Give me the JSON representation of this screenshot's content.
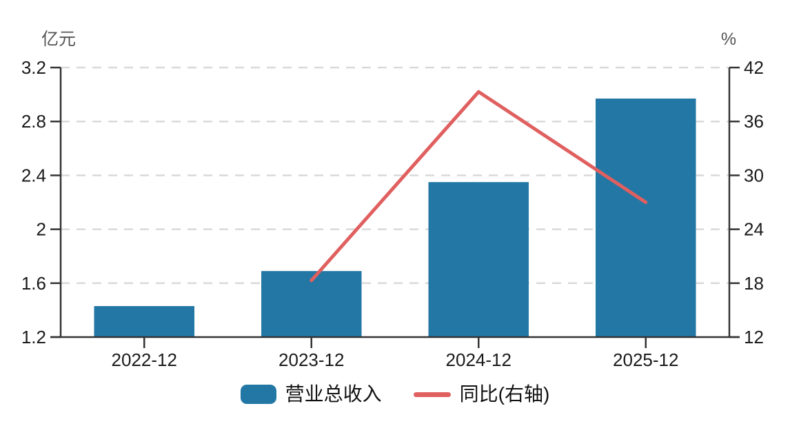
{
  "chart_data": {
    "type": "bar",
    "title": "",
    "categories": [
      "2022-12",
      "2023-12",
      "2024-12",
      "2025-12"
    ],
    "series": [
      {
        "name": "营业总收入",
        "type": "bar",
        "axis": "left",
        "values": [
          1.43,
          1.69,
          2.35,
          2.97
        ]
      },
      {
        "name": "同比(右轴)",
        "type": "line",
        "axis": "right",
        "values": [
          null,
          18.3,
          39.3,
          27.0
        ]
      }
    ],
    "left_axis": {
      "unit": "亿元",
      "min": 1.2,
      "max": 3.2,
      "ticks": [
        "1.2",
        "1.6",
        "2",
        "2.4",
        "2.8",
        "3.2"
      ]
    },
    "right_axis": {
      "unit": "%",
      "min": 12,
      "max": 42,
      "ticks": [
        "12",
        "18",
        "24",
        "30",
        "36",
        "42"
      ]
    },
    "grid": {
      "horizontal": true,
      "style": "dashed"
    },
    "legend_position": "bottom"
  },
  "legend": {
    "items": [
      {
        "label": "营业总收入",
        "swatch": "bar"
      },
      {
        "label": "同比(右轴)",
        "swatch": "line"
      }
    ]
  },
  "colors": {
    "bar": "#2277a5",
    "line": "#e05f5f",
    "axis": "#333333",
    "grid": "#d9d9d9",
    "tick_text": "#1a1a1a",
    "unit_text": "#555555",
    "background": "#ffffff"
  }
}
